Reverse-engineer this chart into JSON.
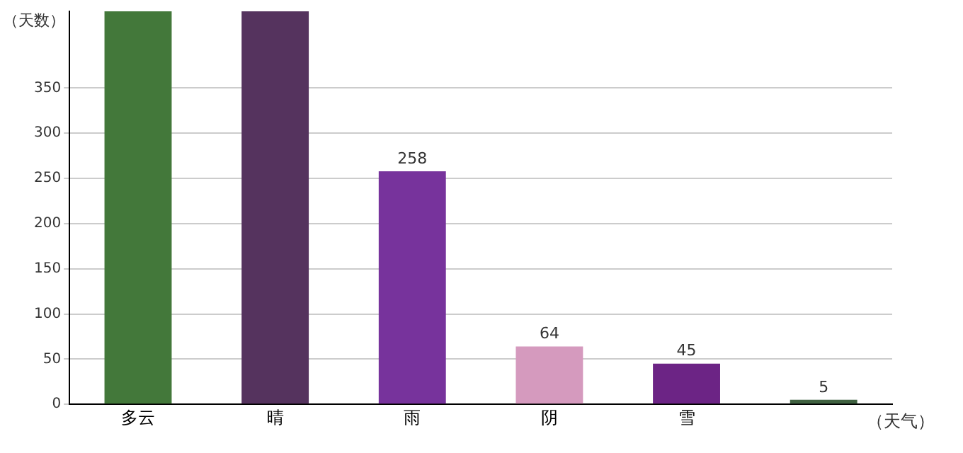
{
  "chart_data": {
    "type": "bar",
    "xlabel": "（天气）",
    "ylabel": "（天数）",
    "categories": [
      "多云",
      "晴",
      "雨",
      "阴",
      "雪",
      null
    ],
    "values": [
      435,
      435,
      258,
      64,
      45,
      5
    ],
    "colors": [
      "#43783a",
      "#55335e",
      "#77339c",
      "#d59abe",
      "#6c2485",
      "#3f6140"
    ],
    "value_labels": [
      null,
      null,
      "258",
      "64",
      "45",
      "5"
    ],
    "ylim": [
      0,
      435
    ],
    "yticks": [
      0,
      50,
      100,
      150,
      200,
      250,
      300,
      350
    ],
    "grid": "y",
    "legend": false
  }
}
